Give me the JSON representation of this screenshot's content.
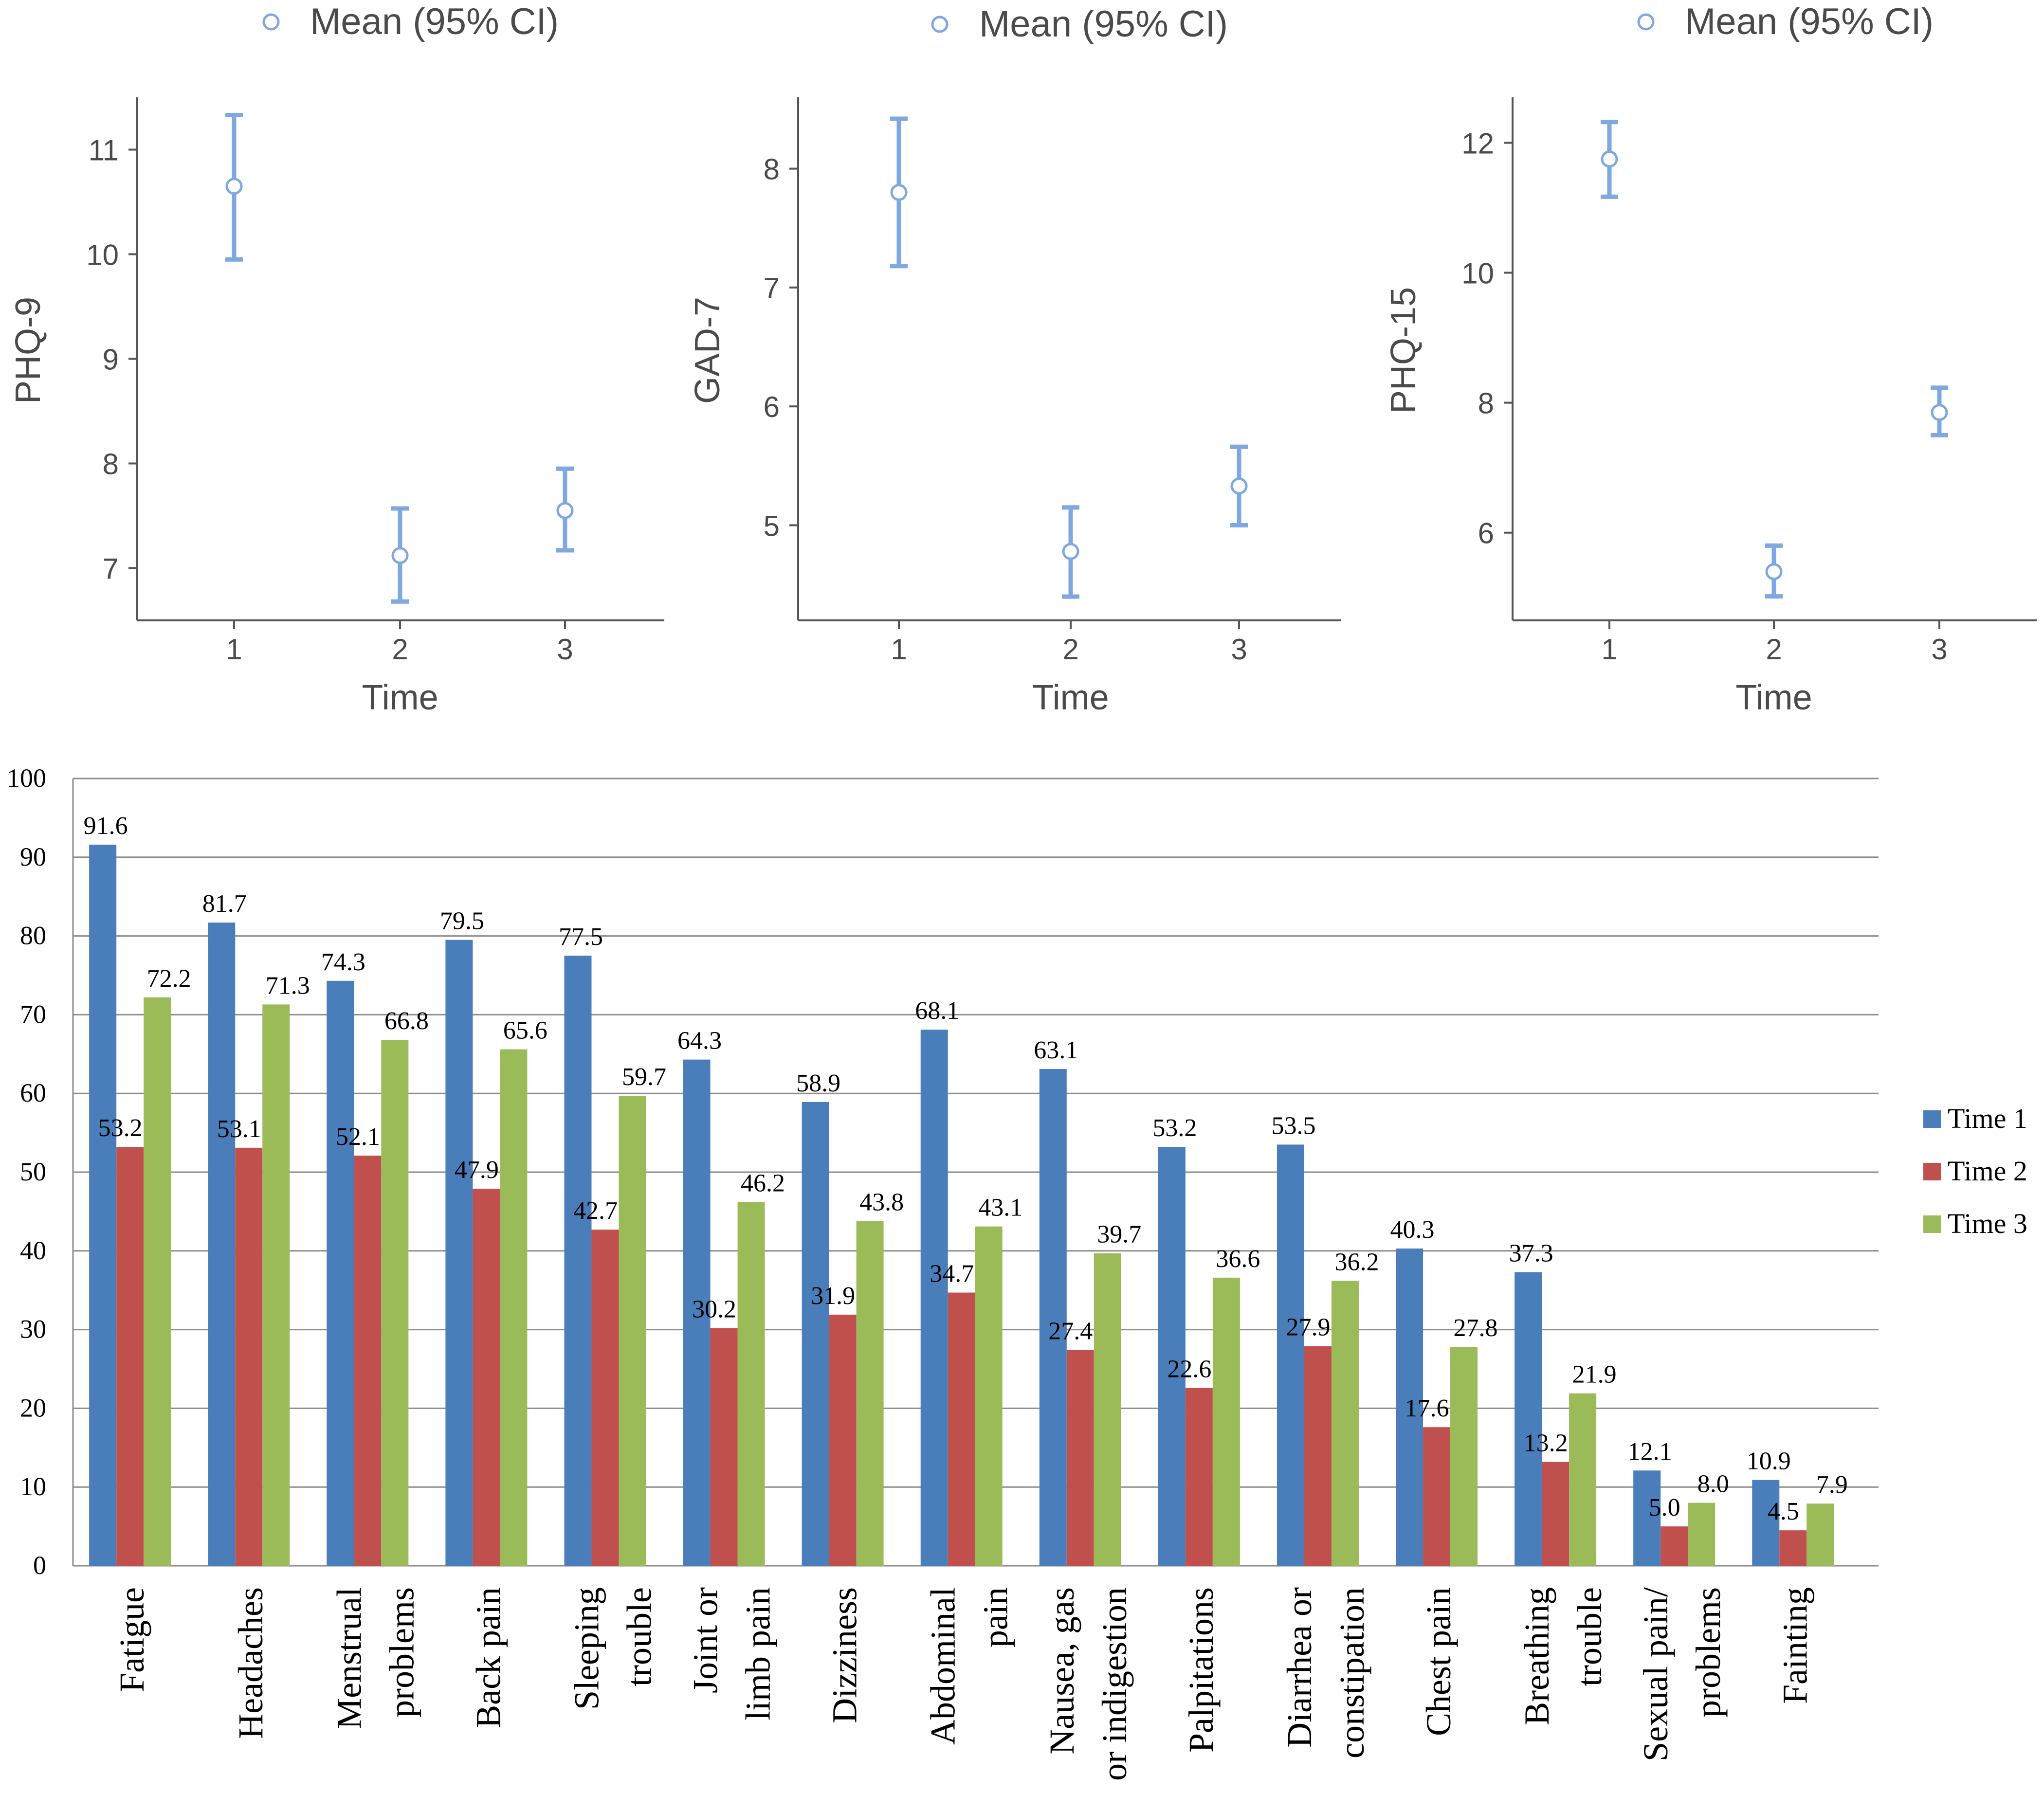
{
  "colors": {
    "ci": "#7fa8e0",
    "axis": "#555555",
    "tick_text": "#4a4a4a",
    "time1": "#4a7ebb",
    "time2": "#c0504d",
    "time3": "#9bbb59",
    "grid": "#8c8c8c",
    "bar_text": "#000000"
  },
  "chart_data": [
    {
      "type": "scatter",
      "title": "",
      "legend_label": "Mean (95% CI)",
      "xlabel": "Time",
      "ylabel": "PHQ-9",
      "x_ticks": [
        "1",
        "2",
        "3"
      ],
      "y_ticks": [
        7,
        8,
        9,
        10,
        11
      ],
      "ylim": [
        6.5,
        11.5
      ],
      "points": [
        {
          "x": 1,
          "mean": 10.65,
          "lower": 9.95,
          "upper": 11.33
        },
        {
          "x": 2,
          "mean": 7.12,
          "lower": 6.68,
          "upper": 7.57
        },
        {
          "x": 3,
          "mean": 7.55,
          "lower": 7.17,
          "upper": 7.95
        }
      ]
    },
    {
      "type": "scatter",
      "title": "",
      "legend_label": "Mean (95% CI)",
      "xlabel": "Time",
      "ylabel": "GAD-7",
      "x_ticks": [
        "1",
        "2",
        "3"
      ],
      "y_ticks": [
        5,
        6,
        7,
        8
      ],
      "ylim": [
        4.2,
        8.6
      ],
      "points": [
        {
          "x": 1,
          "mean": 7.8,
          "lower": 7.18,
          "upper": 8.42
        },
        {
          "x": 2,
          "mean": 4.78,
          "lower": 4.4,
          "upper": 5.15
        },
        {
          "x": 3,
          "mean": 5.33,
          "lower": 5.0,
          "upper": 5.66
        }
      ]
    },
    {
      "type": "scatter",
      "title": "",
      "legend_label": "Mean (95% CI)",
      "xlabel": "Time",
      "ylabel": "PHQ-15",
      "x_ticks": [
        "1",
        "2",
        "3"
      ],
      "y_ticks": [
        6,
        8,
        10,
        12
      ],
      "ylim": [
        4.65,
        12.7
      ],
      "points": [
        {
          "x": 1,
          "mean": 11.75,
          "lower": 11.17,
          "upper": 12.32
        },
        {
          "x": 2,
          "mean": 5.4,
          "lower": 5.02,
          "upper": 5.8
        },
        {
          "x": 3,
          "mean": 7.85,
          "lower": 7.5,
          "upper": 8.23
        }
      ]
    },
    {
      "type": "bar",
      "title": "",
      "xlabel": "",
      "ylabel": "",
      "ylim": [
        0,
        100
      ],
      "y_ticks": [
        0,
        10,
        20,
        30,
        40,
        50,
        60,
        70,
        80,
        90,
        100
      ],
      "grid": true,
      "legend": "right",
      "categories": [
        [
          "Fatigue"
        ],
        [
          "Headaches"
        ],
        [
          "Menstrual",
          "problems"
        ],
        [
          "Back pain"
        ],
        [
          "Sleeping",
          "trouble"
        ],
        [
          "Joint or",
          "limb pain"
        ],
        [
          "Dizziness"
        ],
        [
          "Abdominal",
          "pain"
        ],
        [
          "Nausea, gas",
          "or indigestion"
        ],
        [
          "Palpitations"
        ],
        [
          "Diarrhea or",
          "constipation"
        ],
        [
          "Chest pain"
        ],
        [
          "Breathing",
          "trouble"
        ],
        [
          "Sexual pain/",
          "problems"
        ],
        [
          "Fainting"
        ]
      ],
      "series": [
        {
          "name": "Time 1",
          "values": [
            91.6,
            81.7,
            74.3,
            79.5,
            77.5,
            64.3,
            58.9,
            68.1,
            63.1,
            53.2,
            53.5,
            40.3,
            37.3,
            12.1,
            10.9
          ]
        },
        {
          "name": "Time 2",
          "values": [
            53.2,
            53.1,
            52.1,
            47.9,
            42.7,
            30.2,
            31.9,
            34.7,
            27.4,
            22.6,
            27.9,
            17.6,
            13.2,
            5.0,
            4.5
          ]
        },
        {
          "name": "Time 3",
          "values": [
            72.2,
            71.3,
            66.8,
            65.6,
            59.7,
            46.2,
            43.8,
            43.1,
            39.7,
            36.6,
            36.2,
            27.8,
            21.9,
            8.0,
            7.9
          ]
        }
      ]
    }
  ]
}
